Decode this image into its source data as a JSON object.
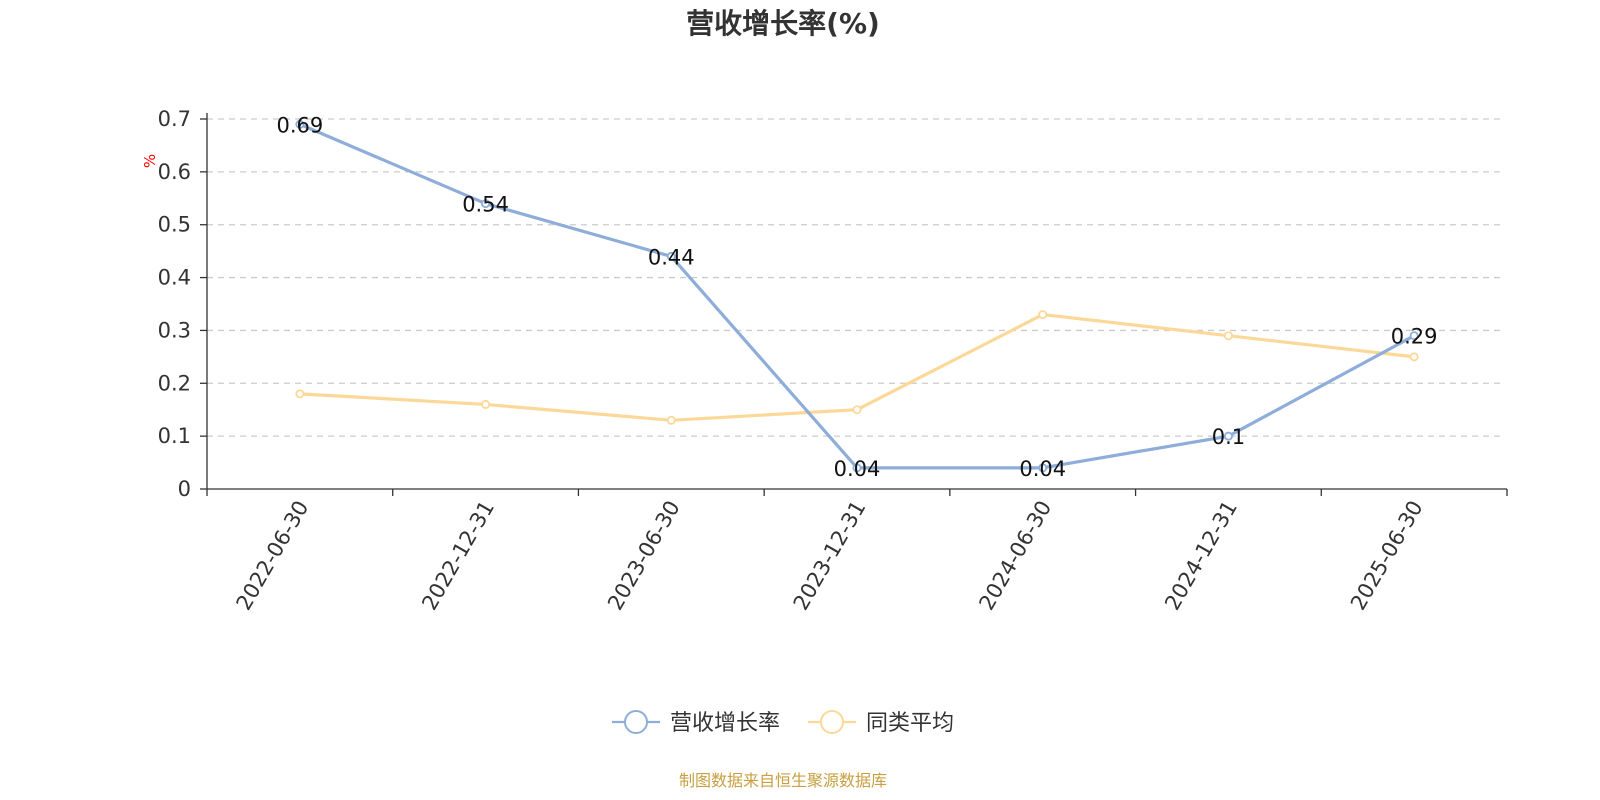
{
  "chart_data": {
    "type": "line",
    "title": "营收增长率(%)",
    "ylabel": "%",
    "categories": [
      "2022-06-30",
      "2022-12-31",
      "2023-06-30",
      "2023-12-31",
      "2024-06-30",
      "2024-12-31",
      "2025-06-30"
    ],
    "ylim": [
      0,
      0.7
    ],
    "yticks": [
      "0",
      "0.1",
      "0.2",
      "0.3",
      "0.4",
      "0.5",
      "0.6",
      "0.7"
    ],
    "grid": true,
    "legend_position": "bottom",
    "series": [
      {
        "name": "营收增长率",
        "color": "#8eadd8",
        "values": [
          0.69,
          0.54,
          0.44,
          0.04,
          0.04,
          0.1,
          0.29
        ],
        "labels": [
          "0.69",
          "0.54",
          "0.44",
          "0.04",
          "0.04",
          "0.1",
          "0.29"
        ]
      },
      {
        "name": "同类平均",
        "color": "#fcd898",
        "values": [
          0.18,
          0.16,
          0.13,
          0.15,
          0.33,
          0.29,
          0.25
        ]
      }
    ]
  },
  "footer": {
    "source": "制图数据来自恒生聚源数据库"
  }
}
